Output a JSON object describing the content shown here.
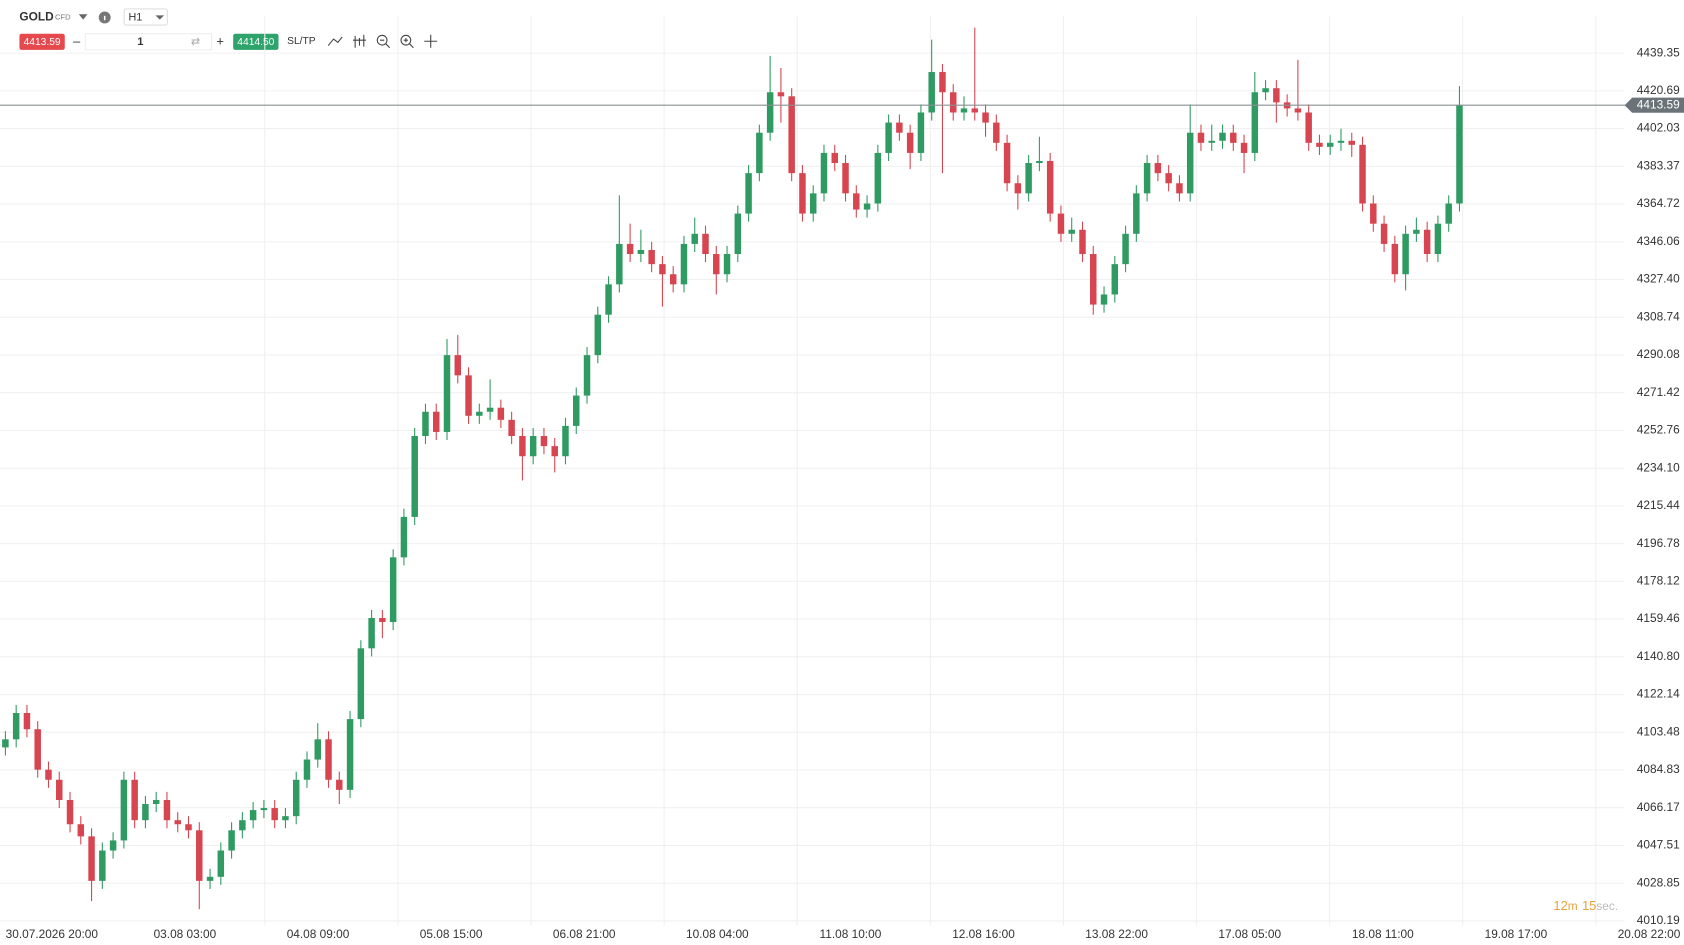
{
  "toolbar": {
    "symbol": "GOLD",
    "badge": "CFD",
    "timeframe": "H1",
    "bid": "4413.59",
    "quantity": "1",
    "ask": "4414.50",
    "sl_tp": "SL/TP"
  },
  "countdown": {
    "minutes": "12",
    "minutes_unit": "m",
    "seconds": "15",
    "seconds_unit": "sec."
  },
  "chart_data": {
    "type": "candlestick",
    "up_color": "#2f9a62",
    "down_color": "#d64550",
    "grid": true,
    "current_price": 4413.59,
    "ylim": [
      4008,
      4449.5
    ],
    "yticks": [
      4439.35,
      4420.69,
      {
        "value": 4402.03,
        "label": "4402.03"
      },
      4383.37,
      4364.72,
      4346.06,
      {
        "value": 4327.4,
        "label": "4327.40"
      },
      4308.74,
      4290.08,
      4271.42,
      4252.76,
      {
        "value": 4234.1,
        "label": "4234.10"
      },
      4215.44,
      4196.78,
      4178.12,
      4159.46,
      {
        "value": 4140.8,
        "label": "4140.80"
      },
      4122.14,
      4103.48,
      4084.83,
      4066.17,
      4047.51,
      4028.85,
      4010.19
    ],
    "x_tick_labels": [
      "30.07.2026 20:00",
      "03.08 03:00",
      "04.08 09:00",
      "05.08 15:00",
      "06.08 21:00",
      "10.08 04:00",
      "11.08 10:00",
      "12.08 16:00",
      "13.08 22:00",
      "17.08 05:00",
      "18.08 11:00",
      "19.08 17:00",
      "20.08 22:00"
    ],
    "open": [
      4096,
      4100,
      4113,
      4105,
      4085,
      4080,
      4070,
      4058,
      4052,
      4030,
      4045,
      4050,
      4080,
      4060,
      4068,
      4070,
      4060,
      4058,
      4055,
      4030,
      4032,
      4045,
      4055,
      4060,
      4065,
      4066,
      4060,
      4062,
      4080,
      4090,
      4100,
      4080,
      4075,
      4110,
      4145,
      4160,
      4158,
      4190,
      4210,
      4250,
      4262,
      4252,
      4290,
      4280,
      4260,
      4262,
      4264,
      4258,
      4250,
      4240,
      4250,
      4245,
      4240,
      4255,
      4270,
      4290,
      4310,
      4325,
      4345,
      4340,
      4342,
      4335,
      4330,
      4325,
      4345,
      4350,
      4340,
      4330,
      4340,
      4360,
      4380,
      4400,
      4420,
      4418,
      4380,
      4360,
      4370,
      4390,
      4385,
      4370,
      4362,
      4365,
      4390,
      4405,
      4400,
      4390,
      4410,
      4430,
      4420,
      4410,
      4412,
      4410,
      4405,
      4395,
      4375,
      4370,
      4385,
      4386,
      4360,
      4350,
      4352,
      4340,
      4315,
      4320,
      4335,
      4350,
      4370,
      4385,
      4380,
      4375,
      4370,
      4400,
      4395,
      4396,
      4400,
      4395,
      4390,
      4420,
      4422,
      4415,
      4412,
      4410,
      4395,
      4393,
      4395,
      4396,
      4394,
      4365,
      4355,
      4345,
      4330,
      4350,
      4352,
      4340,
      4355,
      4365
    ],
    "high": [
      4104,
      4117,
      4117,
      4109,
      4089,
      4084,
      4074,
      4062,
      4056,
      4049,
      4054,
      4084,
      4084,
      4072,
      4074,
      4074,
      4064,
      4062,
      4059,
      4036,
      4049,
      4059,
      4064,
      4069,
      4070,
      4070,
      4066,
      4084,
      4094,
      4108,
      4104,
      4084,
      4114,
      4149,
      4164,
      4164,
      4194,
      4214,
      4254,
      4266,
      4266,
      4298,
      4300,
      4284,
      4266,
      4278,
      4268,
      4262,
      4254,
      4254,
      4254,
      4249,
      4259,
      4274,
      4294,
      4314,
      4329,
      4369,
      4355,
      4352,
      4346,
      4339,
      4334,
      4349,
      4358,
      4354,
      4344,
      4344,
      4364,
      4384,
      4404,
      4438,
      4432,
      4422,
      4384,
      4374,
      4394,
      4394,
      4389,
      4374,
      4369,
      4394,
      4409,
      4409,
      4404,
      4414,
      4446,
      4434,
      4424,
      4418,
      4452,
      4414,
      4409,
      4399,
      4379,
      4389,
      4398,
      4390,
      4364,
      4358,
      4356,
      4344,
      4324,
      4339,
      4354,
      4374,
      4389,
      4389,
      4384,
      4379,
      4414,
      4404,
      4404,
      4404,
      4404,
      4399,
      4430,
      4426,
      4426,
      4419,
      4436,
      4414,
      4399,
      4399,
      4402,
      4400,
      4398,
      4369,
      4359,
      4349,
      4354,
      4358,
      4356,
      4359,
      4369,
      4423
    ],
    "low": [
      4092,
      4096,
      4101,
      4081,
      4076,
      4066,
      4054,
      4048,
      4020,
      4026,
      4041,
      4046,
      4056,
      4056,
      4064,
      4056,
      4054,
      4051,
      4016,
      4026,
      4028,
      4041,
      4051,
      4056,
      4061,
      4056,
      4056,
      4058,
      4076,
      4086,
      4076,
      4068,
      4071,
      4106,
      4141,
      4150,
      4154,
      4186,
      4206,
      4246,
      4248,
      4248,
      4276,
      4256,
      4256,
      4258,
      4254,
      4246,
      4228,
      4236,
      4241,
      4232,
      4236,
      4251,
      4266,
      4286,
      4306,
      4321,
      4336,
      4336,
      4331,
      4314,
      4321,
      4321,
      4341,
      4336,
      4320,
      4326,
      4336,
      4356,
      4376,
      4396,
      4405,
      4376,
      4356,
      4356,
      4366,
      4381,
      4366,
      4358,
      4358,
      4361,
      4386,
      4396,
      4382,
      4386,
      4406,
      4380,
      4406,
      4406,
      4406,
      4398,
      4391,
      4371,
      4362,
      4366,
      4381,
      4356,
      4346,
      4346,
      4336,
      4310,
      4311,
      4316,
      4331,
      4346,
      4366,
      4376,
      4371,
      4366,
      4366,
      4391,
      4391,
      4392,
      4391,
      4380,
      4386,
      4416,
      4405,
      4408,
      4406,
      4391,
      4389,
      4389,
      4391,
      4388,
      4361,
      4351,
      4341,
      4326,
      4322,
      4346,
      4336,
      4336,
      4351,
      4361
    ],
    "close": [
      4100,
      4113,
      4105,
      4085,
      4080,
      4070,
      4058,
      4052,
      4030,
      4045,
      4050,
      4080,
      4060,
      4068,
      4070,
      4060,
      4058,
      4055,
      4030,
      4032,
      4045,
      4055,
      4060,
      4065,
      4066,
      4060,
      4062,
      4080,
      4090,
      4100,
      4080,
      4075,
      4110,
      4145,
      4160,
      4158,
      4190,
      4210,
      4250,
      4262,
      4252,
      4290,
      4280,
      4260,
      4262,
      4264,
      4258,
      4250,
      4240,
      4250,
      4245,
      4240,
      4255,
      4270,
      4290,
      4310,
      4325,
      4345,
      4340,
      4342,
      4335,
      4330,
      4325,
      4345,
      4350,
      4340,
      4330,
      4340,
      4360,
      4380,
      4400,
      4420,
      4418,
      4380,
      4360,
      4370,
      4390,
      4385,
      4370,
      4362,
      4365,
      4390,
      4405,
      4400,
      4390,
      4410,
      4430,
      4420,
      4410,
      4412,
      4410,
      4405,
      4395,
      4375,
      4370,
      4385,
      4386,
      4360,
      4350,
      4352,
      4340,
      4315,
      4320,
      4335,
      4350,
      4370,
      4385,
      4380,
      4375,
      4370,
      4400,
      4395,
      4396,
      4400,
      4395,
      4390,
      4420,
      4422,
      4415,
      4412,
      4410,
      4395,
      4393,
      4395,
      4396,
      4394,
      4365,
      4355,
      4345,
      4330,
      4350,
      4352,
      4340,
      4355,
      4365,
      4413.59
    ]
  }
}
